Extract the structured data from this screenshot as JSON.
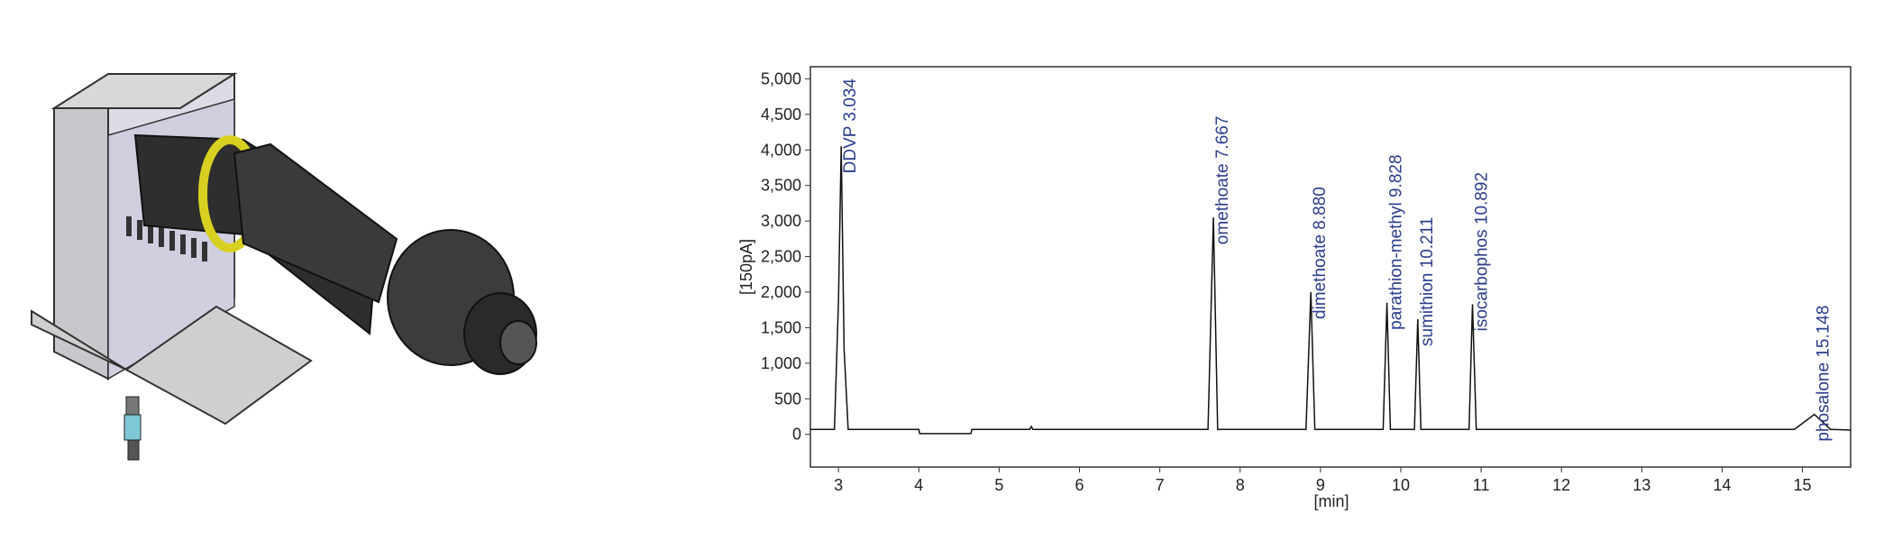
{
  "chart_data": {
    "type": "line",
    "ylabel": "[150pA]",
    "xlabel": "[min]",
    "x": [
      2.65,
      2.95,
      3.0,
      3.034,
      3.07,
      3.12,
      4.0,
      4.01,
      4.65,
      4.66,
      5.38,
      5.4,
      5.42,
      7.6,
      7.667,
      7.72,
      8.82,
      8.88,
      8.93,
      9.78,
      9.828,
      9.87,
      10.17,
      10.211,
      10.25,
      10.85,
      10.892,
      10.94,
      14.9,
      15.148,
      15.35,
      15.6
    ],
    "series": [
      {
        "color": "#111111",
        "values": [
          70,
          70,
          1900,
          4050,
          1200,
          70,
          70,
          10,
          10,
          70,
          70,
          110,
          70,
          70,
          3050,
          70,
          70,
          2000,
          70,
          70,
          1850,
          70,
          70,
          1620,
          70,
          70,
          1830,
          70,
          70,
          280,
          70,
          60
        ]
      }
    ],
    "xlim": [
      2.65,
      15.6
    ],
    "ylim": [
      -460,
      5170
    ],
    "xticks": [
      3,
      4,
      5,
      6,
      7,
      8,
      9,
      10,
      11,
      12,
      13,
      14,
      15
    ],
    "yticks": [
      0,
      500,
      {
        "value": 1000,
        "label": "1,000"
      },
      {
        "value": 1500,
        "label": "1,500"
      },
      {
        "value": 2000,
        "label": "2,000"
      },
      {
        "value": 2500,
        "label": "2,500"
      },
      {
        "value": 3000,
        "label": "3,000"
      },
      {
        "value": 3500,
        "label": "3,500"
      },
      {
        "value": 4000,
        "label": "4,000"
      },
      {
        "value": 4500,
        "label": "4,500"
      },
      {
        "value": 5000,
        "label": "5,000"
      }
    ],
    "annotations": [
      {
        "text": "DDVP 3.034",
        "x": 3.034
      },
      {
        "text": "omethoate 7.667",
        "x": 7.667
      },
      {
        "text": "dimethoate 8.880",
        "x": 8.88
      },
      {
        "text": "parathion-methyl 9.828",
        "x": 9.828
      },
      {
        "text": "sumithion 10.211",
        "x": 10.211
      },
      {
        "text": "isocarbophos 10.892",
        "x": 10.892
      },
      {
        "text": "phosalone 15.148",
        "x": 15.148
      }
    ]
  }
}
